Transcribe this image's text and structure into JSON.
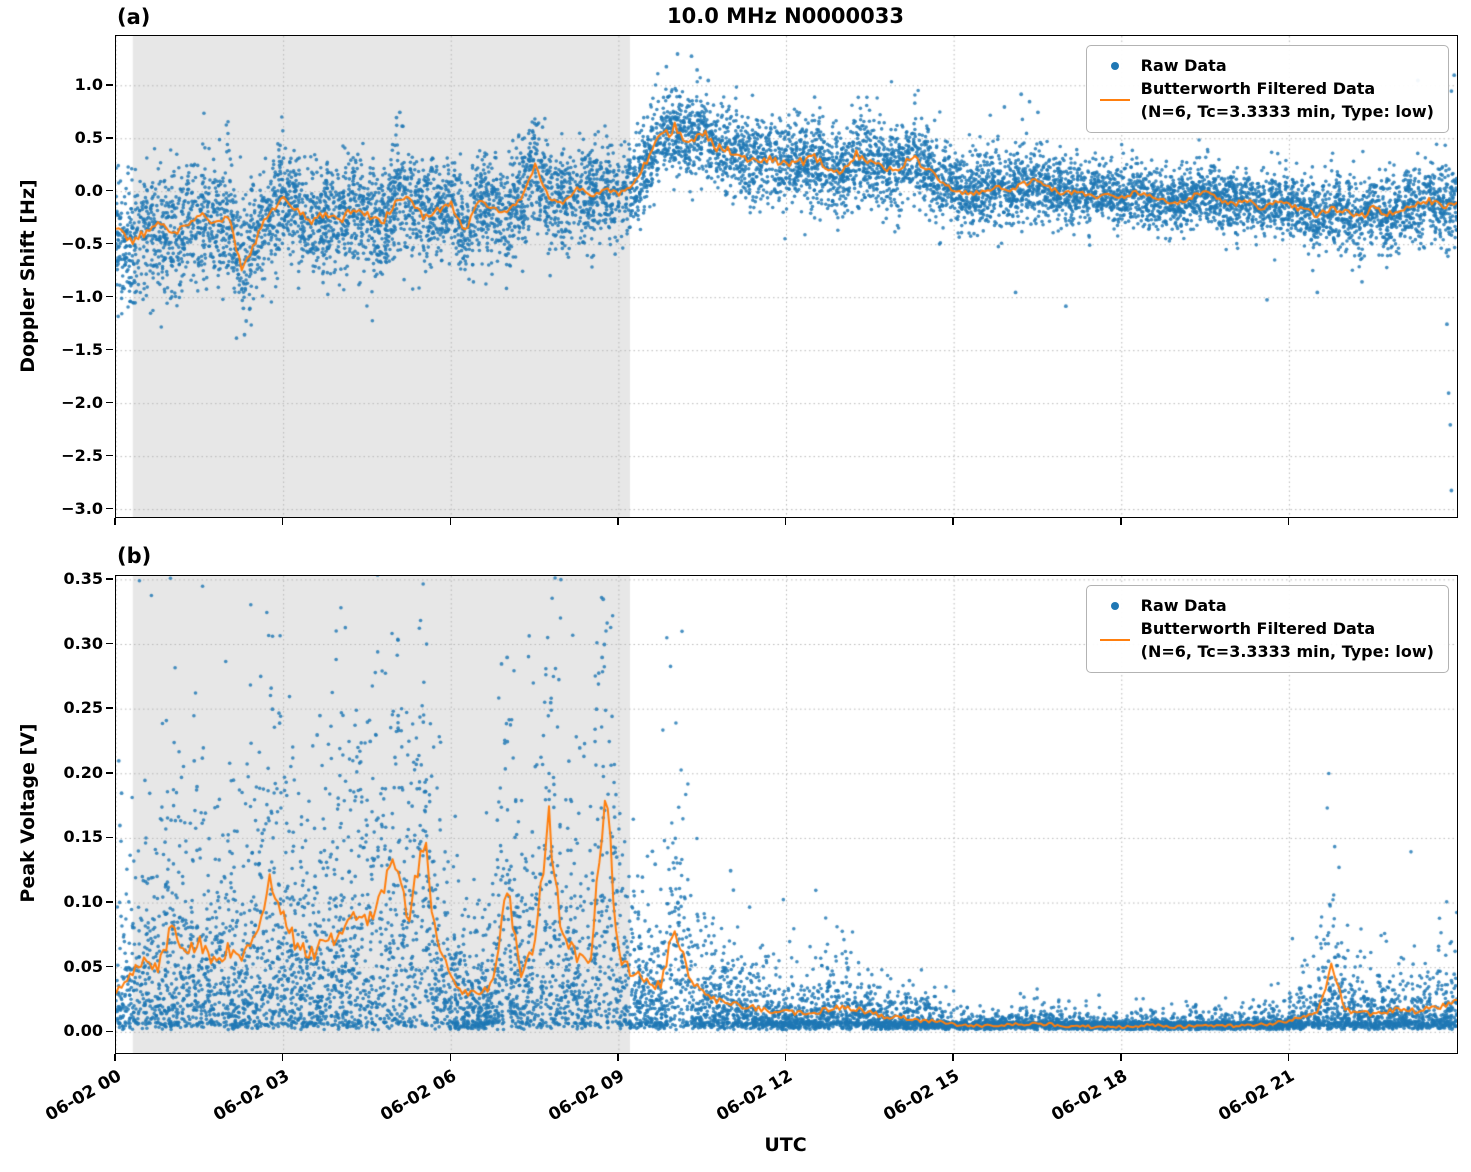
{
  "figure": {
    "title": "10.0 MHz N0000033",
    "panel_a_label": "(a)",
    "panel_b_label": "(b)",
    "xlabel": "UTC",
    "colors": {
      "raw": "#1f77b4",
      "filtered": "#ff7f0e",
      "shade": "#e7e7e7",
      "grid": "#b8b8b8",
      "spine": "#000000"
    }
  },
  "legend": {
    "raw_label": "Raw Data",
    "filtered_label": "Butterworth Filtered Data",
    "filtered_sublabel": "(N=6, Tc=3.3333 min, Type: low)"
  },
  "chart_data": [
    {
      "panel": "a",
      "type": "scatter",
      "title": "10.0 MHz N0000033",
      "ylabel": "Doppler Shift [Hz]",
      "ylim": [
        -3.07,
        1.47
      ],
      "ytick_values": [
        1.0,
        0.5,
        0.0,
        -0.5,
        -1.0,
        -1.5,
        -2.0,
        -2.5,
        -3.0
      ],
      "ytick_labels": [
        "1.0",
        "0.5",
        "0.0",
        "−0.5",
        "−1.0",
        "−1.5",
        "−2.0",
        "−2.5",
        "−3.0"
      ],
      "xlim_hours": [
        0,
        24
      ],
      "xtick_hours": [
        0,
        3,
        6,
        9,
        12,
        15,
        18,
        21
      ],
      "xtick_labels": [
        "06-02 00",
        "06-02 03",
        "06-02 06",
        "06-02 09",
        "06-02 12",
        "06-02 15",
        "06-02 18",
        "06-02 21"
      ],
      "xtick_labels_visible": false,
      "grid": "dotted",
      "legend_position": "upper right",
      "shaded_region_hours": [
        0.3,
        9.2
      ],
      "seed": 7,
      "line_jitter": [
        0.045,
        0.12
      ],
      "series": [
        {
          "name": "Raw Data",
          "style": "scatter",
          "model": "gauss",
          "point_count": 9000,
          "sigma_by_hour": [
            0.3,
            0.28,
            0.3,
            0.26,
            0.26,
            0.28,
            0.24,
            0.26,
            0.26,
            0.22,
            0.2,
            0.2,
            0.22,
            0.22,
            0.2,
            0.18,
            0.18,
            0.16,
            0.14,
            0.14,
            0.15,
            0.16,
            0.18,
            0.18,
            0.2
          ],
          "outliers": [
            [
              2.28,
              -1.1
            ],
            [
              2.3,
              -1.35
            ],
            [
              2.33,
              -1.22
            ],
            [
              5.02,
              0.7
            ],
            [
              5.08,
              0.75
            ],
            [
              5.12,
              0.62
            ],
            [
              9.85,
              1.18
            ],
            [
              10.05,
              1.3
            ],
            [
              10.3,
              1.28
            ],
            [
              10.4,
              1.15
            ],
            [
              10.6,
              1.05
            ],
            [
              15.9,
              0.8
            ],
            [
              16.2,
              0.92
            ],
            [
              16.35,
              0.85
            ],
            [
              16.5,
              0.75
            ],
            [
              16.1,
              -0.95
            ],
            [
              17.0,
              -1.08
            ],
            [
              20.6,
              -1.02
            ],
            [
              21.5,
              -0.95
            ],
            [
              22.3,
              -0.85
            ],
            [
              23.3,
              1.05
            ],
            [
              23.82,
              -1.25
            ],
            [
              23.85,
              -1.9
            ],
            [
              23.88,
              -2.2
            ],
            [
              23.9,
              -2.82
            ],
            [
              23.9,
              0.95
            ],
            [
              23.95,
              1.1
            ]
          ]
        },
        {
          "name": "Butterworth Filtered Data (N=6, Tc=3.3333 min, Type: low)",
          "style": "line",
          "x_start_hours": 0,
          "x_step_hours": 0.25,
          "y": [
            -0.35,
            -0.48,
            -0.4,
            -0.3,
            -0.42,
            -0.3,
            -0.22,
            -0.3,
            -0.22,
            -0.7,
            -0.45,
            -0.2,
            -0.05,
            -0.18,
            -0.28,
            -0.2,
            -0.28,
            -0.15,
            -0.22,
            -0.3,
            -0.1,
            -0.05,
            -0.25,
            -0.18,
            -0.12,
            -0.35,
            -0.08,
            -0.15,
            -0.18,
            -0.05,
            0.25,
            -0.05,
            -0.12,
            0.05,
            -0.05,
            0.02,
            -0.02,
            0.05,
            0.3,
            0.52,
            0.6,
            0.48,
            0.55,
            0.42,
            0.38,
            0.32,
            0.28,
            0.32,
            0.25,
            0.28,
            0.32,
            0.22,
            0.18,
            0.35,
            0.28,
            0.22,
            0.18,
            0.35,
            0.22,
            0.1,
            0.02,
            -0.02,
            0.0,
            0.05,
            0.02,
            0.08,
            0.1,
            0.02,
            -0.02,
            0.0,
            -0.05,
            -0.02,
            -0.05,
            0.0,
            -0.05,
            -0.08,
            -0.12,
            -0.05,
            0.0,
            -0.08,
            -0.12,
            -0.08,
            -0.15,
            -0.1,
            -0.12,
            -0.18,
            -0.22,
            -0.15,
            -0.18,
            -0.25,
            -0.15,
            -0.2,
            -0.18,
            -0.12,
            -0.08,
            -0.15,
            -0.1
          ]
        }
      ]
    },
    {
      "panel": "b",
      "type": "scatter",
      "ylabel": "Peak Voltage [V]",
      "ylim": [
        -0.016,
        0.353
      ],
      "ytick_values": [
        0.35,
        0.3,
        0.25,
        0.2,
        0.15,
        0.1,
        0.05,
        0.0
      ],
      "ytick_labels": [
        "0.35",
        "0.30",
        "0.25",
        "0.20",
        "0.15",
        "0.10",
        "0.05",
        "0.00"
      ],
      "xlim_hours": [
        0,
        24
      ],
      "xtick_hours": [
        0,
        3,
        6,
        9,
        12,
        15,
        18,
        21
      ],
      "xtick_labels": [
        "06-02 00",
        "06-02 03",
        "06-02 06",
        "06-02 09",
        "06-02 12",
        "06-02 15",
        "06-02 18",
        "06-02 21"
      ],
      "xtick_labels_visible": true,
      "grid": "dotted",
      "legend_position": "upper right",
      "shaded_region_hours": [
        0.3,
        9.2
      ],
      "seed": 11,
      "line_jitter": [
        0.0015,
        0.18
      ],
      "series": [
        {
          "name": "Raw Data",
          "style": "scatter",
          "model": "exp",
          "point_count": 9000,
          "floor_v": [
            0.002,
            0.006
          ],
          "outliers": [
            [
              0.05,
              0.21
            ],
            [
              0.1,
              0.185
            ],
            [
              0.07,
              0.16
            ],
            [
              1.4,
              0.21
            ],
            [
              1.45,
              0.19
            ],
            [
              2.8,
              0.25
            ],
            [
              3.6,
              0.23
            ],
            [
              3.65,
              0.245
            ],
            [
              4.5,
              0.24
            ],
            [
              4.55,
              0.225
            ],
            [
              5.05,
              0.245
            ],
            [
              5.3,
              0.175
            ],
            [
              5.5,
              0.24
            ],
            [
              6.9,
              0.285
            ],
            [
              7.0,
              0.29
            ],
            [
              7.45,
              0.155
            ],
            [
              7.78,
              0.255
            ],
            [
              8.3,
              0.22
            ],
            [
              8.6,
              0.25
            ],
            [
              8.7,
              0.29
            ],
            [
              8.72,
              0.335
            ],
            [
              8.74,
              0.3
            ],
            [
              9.6,
              0.14
            ],
            [
              9.65,
              0.13
            ],
            [
              10.02,
              0.135
            ],
            [
              11.0,
              0.125
            ],
            [
              11.05,
              0.11
            ],
            [
              13.1,
              0.05
            ],
            [
              13.3,
              0.045
            ],
            [
              14.2,
              0.04
            ],
            [
              21.65,
              0.05
            ],
            [
              21.7,
              0.055
            ],
            [
              23.9,
              0.04
            ],
            [
              23.95,
              0.045
            ]
          ]
        },
        {
          "name": "Butterworth Filtered Data (N=6, Tc=3.3333 min, Type: low)",
          "style": "line",
          "x_start_hours": 0,
          "x_step_hours": 0.25,
          "y": [
            0.03,
            0.045,
            0.055,
            0.05,
            0.08,
            0.06,
            0.07,
            0.055,
            0.065,
            0.06,
            0.07,
            0.125,
            0.09,
            0.065,
            0.06,
            0.07,
            0.075,
            0.095,
            0.08,
            0.11,
            0.135,
            0.085,
            0.15,
            0.07,
            0.045,
            0.03,
            0.028,
            0.04,
            0.115,
            0.045,
            0.07,
            0.16,
            0.07,
            0.06,
            0.055,
            0.19,
            0.06,
            0.045,
            0.04,
            0.035,
            0.085,
            0.045,
            0.03,
            0.025,
            0.022,
            0.02,
            0.018,
            0.016,
            0.016,
            0.015,
            0.016,
            0.018,
            0.02,
            0.018,
            0.015,
            0.012,
            0.012,
            0.01,
            0.009,
            0.008,
            0.006,
            0.005,
            0.005,
            0.005,
            0.006,
            0.006,
            0.007,
            0.006,
            0.005,
            0.005,
            0.004,
            0.004,
            0.004,
            0.005,
            0.006,
            0.005,
            0.004,
            0.005,
            0.005,
            0.005,
            0.005,
            0.006,
            0.006,
            0.007,
            0.009,
            0.012,
            0.015,
            0.05,
            0.018,
            0.015,
            0.014,
            0.016,
            0.018,
            0.016,
            0.018,
            0.02,
            0.025
          ]
        }
      ]
    }
  ]
}
